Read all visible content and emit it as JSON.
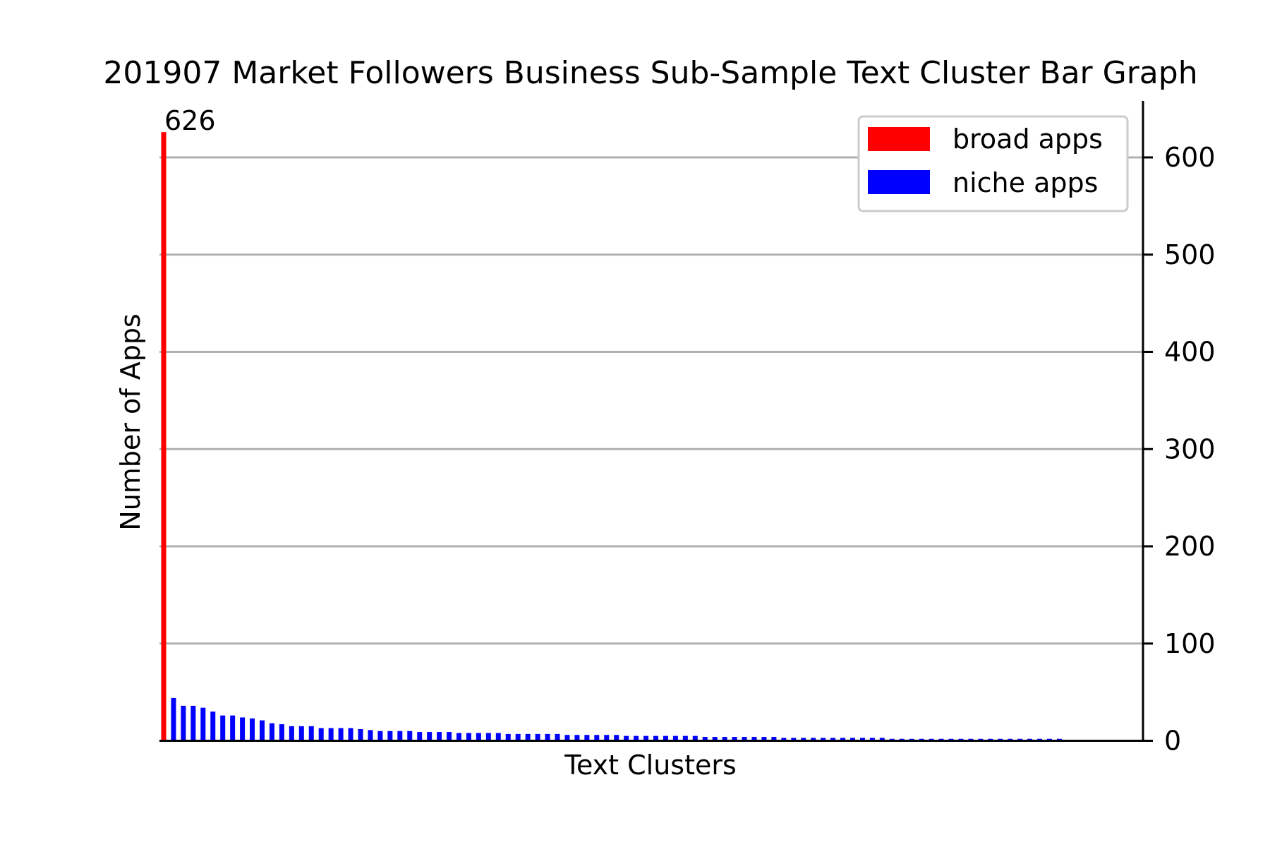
{
  "chart_data": {
    "type": "bar",
    "title": "201907 Market Followers Business Sub-Sample Text Cluster Bar Graph",
    "xlabel": "Text Clusters",
    "ylabel": "Number of Apps",
    "ylim": [
      0,
      660
    ],
    "yticks": [
      0,
      100,
      200,
      300,
      400,
      500,
      600
    ],
    "y_axis_side": "right",
    "grid": "horizontal",
    "legend": {
      "placement": "top-right",
      "entries": [
        {
          "label": "broad apps",
          "color": "#ff0000"
        },
        {
          "label": "niche apps",
          "color": "#0000ff"
        }
      ]
    },
    "data_labels": [
      {
        "series": "broad apps",
        "index": 0,
        "text": "626"
      }
    ],
    "series": [
      {
        "name": "broad apps",
        "color": "#ff0000",
        "values": [
          626
        ]
      },
      {
        "name": "niche apps",
        "color": "#0000ff",
        "values": [
          44,
          36,
          36,
          34,
          30,
          26,
          26,
          24,
          23,
          21,
          18,
          17,
          15,
          15,
          15,
          13,
          13,
          13,
          13,
          12,
          11,
          10,
          10,
          10,
          10,
          9,
          9,
          9,
          9,
          8,
          8,
          8,
          8,
          8,
          7,
          7,
          7,
          7,
          7,
          7,
          6,
          6,
          6,
          6,
          6,
          6,
          5,
          5,
          5,
          5,
          5,
          5,
          5,
          5,
          4,
          4,
          4,
          4,
          4,
          4,
          4,
          4,
          3,
          3,
          3,
          3,
          3,
          3,
          3,
          3,
          3,
          3,
          3,
          2,
          2,
          2,
          2,
          2,
          2,
          2,
          2,
          2,
          2,
          2,
          2,
          2,
          2,
          2,
          2,
          2,
          2
        ]
      }
    ]
  }
}
